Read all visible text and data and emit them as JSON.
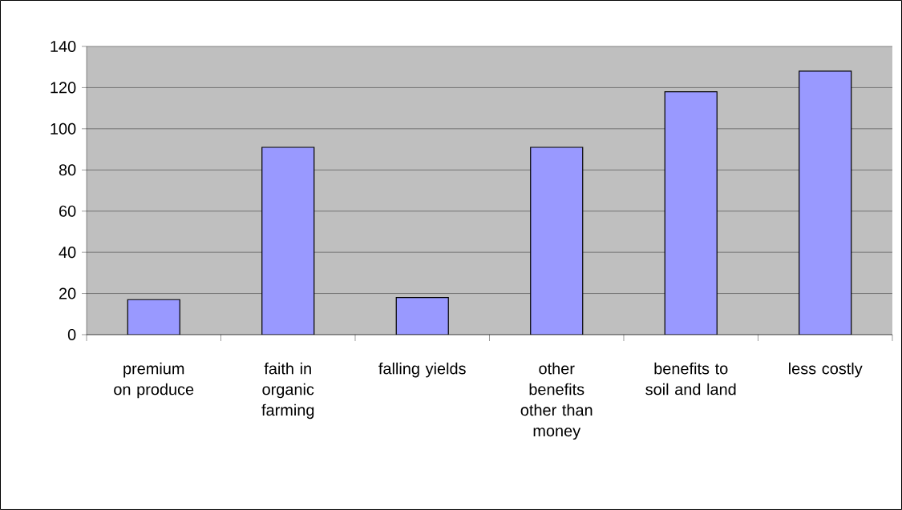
{
  "chart_data": {
    "type": "bar",
    "categories": [
      "premium on produce",
      "faith in organic farming",
      "falling yields",
      "other benefits other than money",
      "benefits to soil and land",
      "less costly"
    ],
    "values": [
      17,
      91,
      18,
      91,
      118,
      128
    ],
    "color": "#9999ff",
    "ylim": [
      0,
      140
    ],
    "yticks": [
      0,
      20,
      40,
      60,
      80,
      100,
      120,
      140
    ],
    "grid": "y"
  }
}
